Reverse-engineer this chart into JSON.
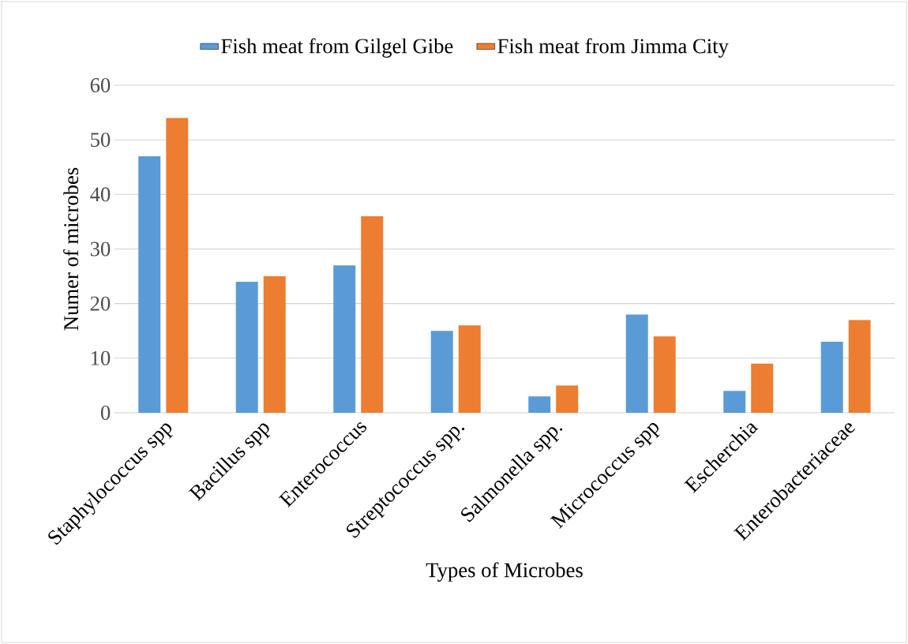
{
  "chart_data": {
    "type": "bar",
    "xlabel": "Types of Microbes",
    "ylabel": "Numer of microbes",
    "categories": [
      "Staphylococcus spp",
      "Bacillus spp",
      "Enterococcus",
      "Streptococcus spp.",
      "Salmonella spp.",
      "Micrococcus spp",
      "Escherchia",
      "Enterobacteriaceae"
    ],
    "series": [
      {
        "name": "Fish meat from Gilgel Gibe",
        "color": "#5b9bd5",
        "values": [
          47,
          24,
          27,
          15,
          3,
          18,
          4,
          13
        ]
      },
      {
        "name": "Fish meat from Jimma City",
        "color": "#ed7d31",
        "values": [
          54,
          25,
          36,
          16,
          5,
          14,
          9,
          17
        ]
      }
    ],
    "ylim": [
      0,
      60
    ],
    "yticks": [
      0,
      10,
      20,
      30,
      40,
      50,
      60
    ],
    "grid": "y",
    "legend": "top"
  }
}
